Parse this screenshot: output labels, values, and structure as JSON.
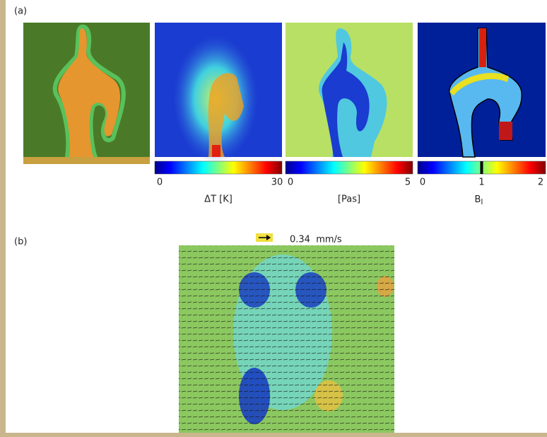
{
  "panel_a": {
    "label": "(a)",
    "colorbars": [
      {
        "ticks": [
          "0",
          "30"
        ],
        "label": "ΔT [K]"
      },
      {
        "ticks": [
          "0",
          "5"
        ],
        "label": "[Pas]"
      },
      {
        "ticks": [
          "0",
          "1",
          "2"
        ],
        "label": {
          "base": "B",
          "sub": "l"
        }
      }
    ]
  },
  "panel_b": {
    "label": "(b)",
    "scale": "0.34  mm/s"
  }
}
